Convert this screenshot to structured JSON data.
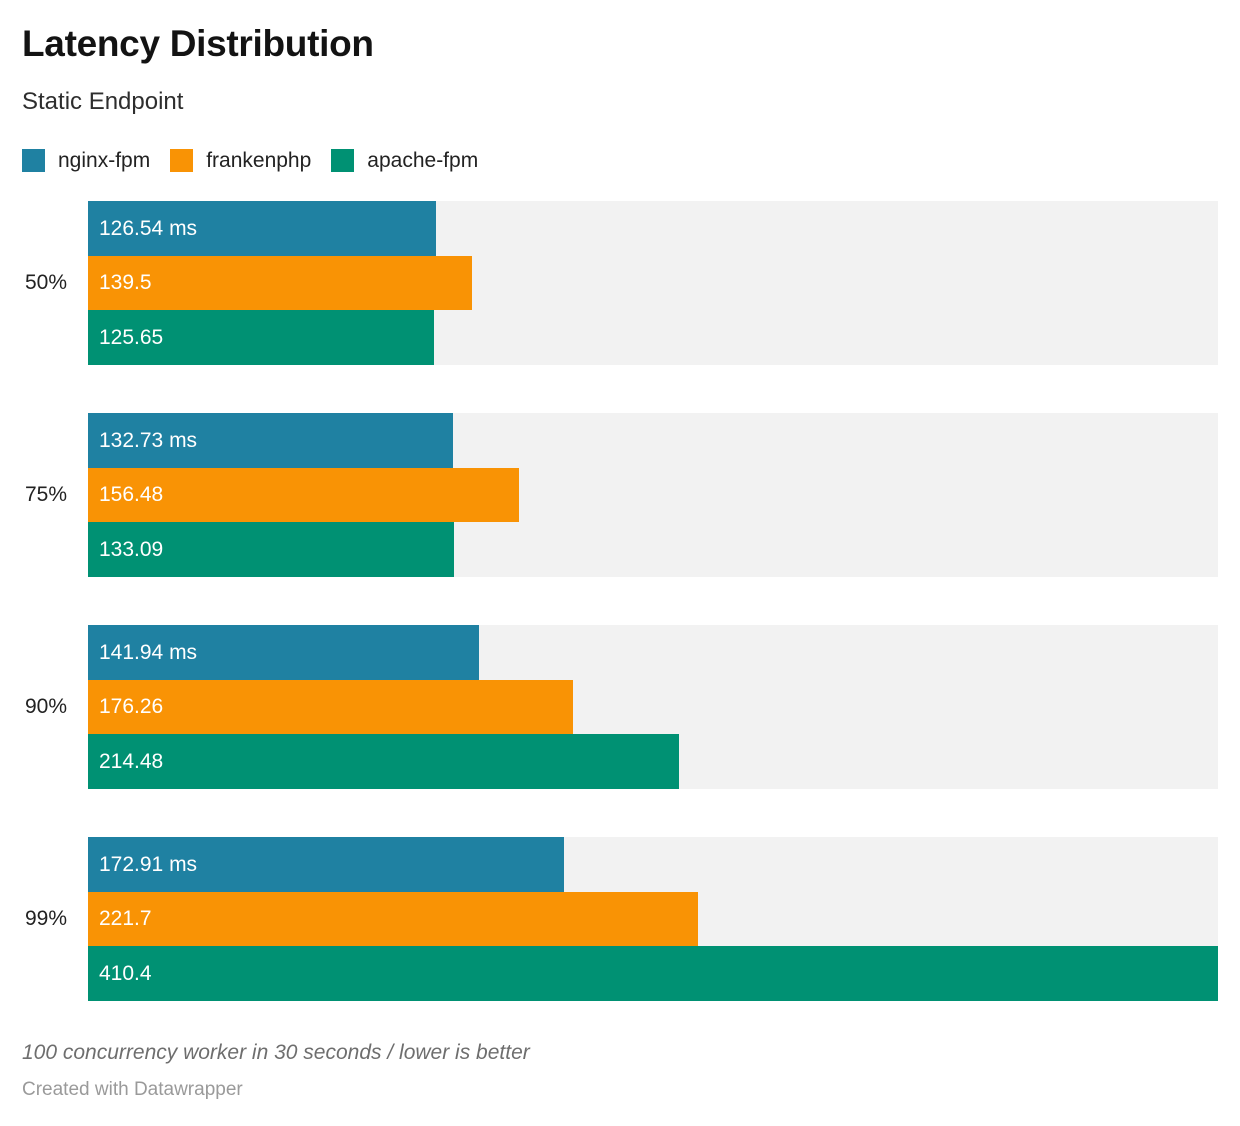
{
  "header": {
    "title": "Latency Distribution",
    "subtitle": "Static Endpoint"
  },
  "colors": {
    "nginx_fpm": "#1f81a2",
    "frankenphp": "#f99305",
    "apache_fpm": "#009173",
    "track_background": "#f2f2f2",
    "bar_label_text": "#ffffff"
  },
  "chart_data": {
    "type": "bar",
    "orientation": "horizontal",
    "title": "Latency Distribution",
    "subtitle": "Static Endpoint",
    "categories": [
      "50%",
      "75%",
      "90%",
      "99%"
    ],
    "series": [
      {
        "name": "nginx-fpm",
        "color": "#1f81a2",
        "values": [
          126.54,
          132.73,
          141.94,
          172.91
        ],
        "labels": [
          "126.54 ms",
          "132.73 ms",
          "141.94 ms",
          "172.91 ms"
        ]
      },
      {
        "name": "frankenphp",
        "color": "#f99305",
        "values": [
          139.5,
          156.48,
          176.26,
          221.7
        ],
        "labels": [
          "139.5",
          "156.48",
          "176.26",
          "221.7"
        ]
      },
      {
        "name": "apache-fpm",
        "color": "#009173",
        "values": [
          125.65,
          133.09,
          214.48,
          410.4
        ],
        "labels": [
          "125.65",
          "133.09",
          "214.48",
          "410.4"
        ]
      }
    ],
    "unit": "ms",
    "xlim": [
      0,
      410.4
    ],
    "grid": false,
    "legend_position": "top",
    "value_labels_inside_bars": true
  },
  "footer": {
    "note": "100 concurrency worker in 30 seconds / lower is better",
    "credit": "Created with Datawrapper"
  }
}
